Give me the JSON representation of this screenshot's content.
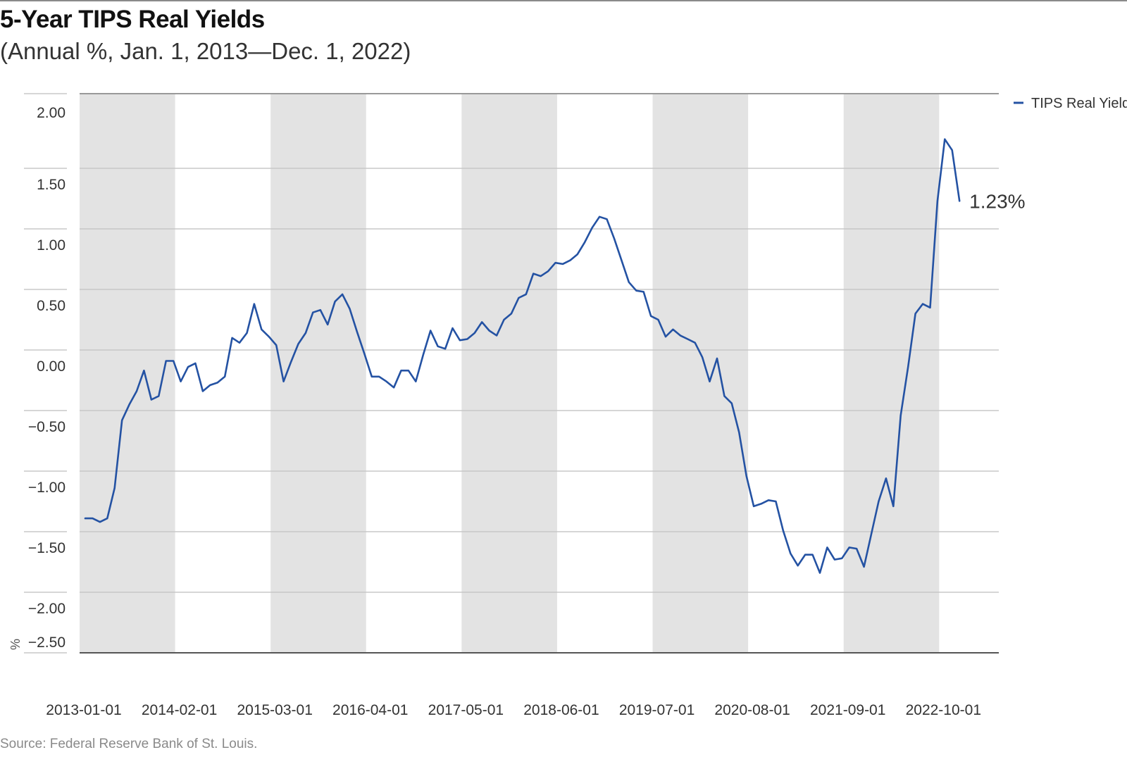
{
  "header": {
    "title": "5-Year TIPS Real Yields",
    "subtitle": "(Annual %, Jan. 1, 2013—Dec. 1, 2022)"
  },
  "footer": {
    "source": "Source: Federal Reserve Bank of St. Louis."
  },
  "colors": {
    "line": "#2452a3",
    "band": "#e3e3e3",
    "grid": "#c8c8c8",
    "baseline": "#555555"
  },
  "chart_data": {
    "type": "line",
    "title": "5-Year TIPS Real Yields",
    "subtitle": "(Annual %, Jan. 1, 2013—Dec. 1, 2022)",
    "ylabel": "%",
    "ylim": [
      -2.5,
      2.0
    ],
    "y_ticks": [
      2.0,
      1.5,
      1.0,
      0.5,
      0.0,
      -0.5,
      -1.0,
      -1.5,
      -2.0,
      -2.5
    ],
    "y_tick_labels": [
      "2.00",
      "1.50",
      "1.00",
      "0.50",
      "0.00",
      "−0.50",
      "−1.00",
      "−1.50",
      "−2.00",
      "−2.50"
    ],
    "x_tick_labels": [
      "2013-01-01",
      "2014-02-01",
      "2015-03-01",
      "2016-04-01",
      "2017-05-01",
      "2018-06-01",
      "2019-07-01",
      "2020-08-01",
      "2021-09-01",
      "2022-10-01"
    ],
    "x_start": "2013-01-01",
    "x_end": "2022-12-01",
    "frequency": "monthly",
    "grid": true,
    "legend_position": "top-right",
    "shaded_bands": [
      [
        "2013-01-01",
        "2014-02-01"
      ],
      [
        "2015-03-01",
        "2016-04-01"
      ],
      [
        "2017-05-01",
        "2018-06-01"
      ],
      [
        "2019-07-01",
        "2020-08-01"
      ],
      [
        "2021-09-01",
        "2022-10-01"
      ]
    ],
    "end_label": "1.23%",
    "series": [
      {
        "name": "TIPS Real Yield",
        "color": "#2452a3",
        "values": [
          -1.39,
          -1.39,
          -1.42,
          -1.39,
          -1.14,
          -0.58,
          -0.45,
          -0.34,
          -0.17,
          -0.41,
          -0.38,
          -0.09,
          -0.09,
          -0.26,
          -0.14,
          -0.11,
          -0.34,
          -0.29,
          -0.27,
          -0.22,
          0.1,
          0.06,
          0.14,
          0.38,
          0.17,
          0.11,
          0.04,
          -0.26,
          -0.1,
          0.05,
          0.14,
          0.31,
          0.33,
          0.21,
          0.4,
          0.46,
          0.34,
          0.15,
          -0.03,
          -0.22,
          -0.22,
          -0.26,
          -0.31,
          -0.17,
          -0.17,
          -0.26,
          -0.04,
          0.16,
          0.03,
          0.01,
          0.18,
          0.08,
          0.09,
          0.14,
          0.23,
          0.16,
          0.12,
          0.25,
          0.3,
          0.43,
          0.46,
          0.63,
          0.61,
          0.65,
          0.72,
          0.71,
          0.74,
          0.79,
          0.89,
          1.01,
          1.1,
          1.08,
          0.92,
          0.74,
          0.56,
          0.49,
          0.48,
          0.28,
          0.25,
          0.11,
          0.17,
          0.12,
          0.09,
          0.06,
          -0.06,
          -0.26,
          -0.07,
          -0.38,
          -0.44,
          -0.68,
          -1.04,
          -1.29,
          -1.27,
          -1.24,
          -1.25,
          -1.49,
          -1.68,
          -1.78,
          -1.69,
          -1.69,
          -1.84,
          -1.63,
          -1.73,
          -1.72,
          -1.63,
          -1.64,
          -1.79,
          -1.52,
          -1.25,
          -1.06,
          -1.29,
          -0.54,
          -0.14,
          0.3,
          0.38,
          0.35,
          1.23,
          1.74,
          1.65,
          1.23
        ]
      }
    ]
  }
}
